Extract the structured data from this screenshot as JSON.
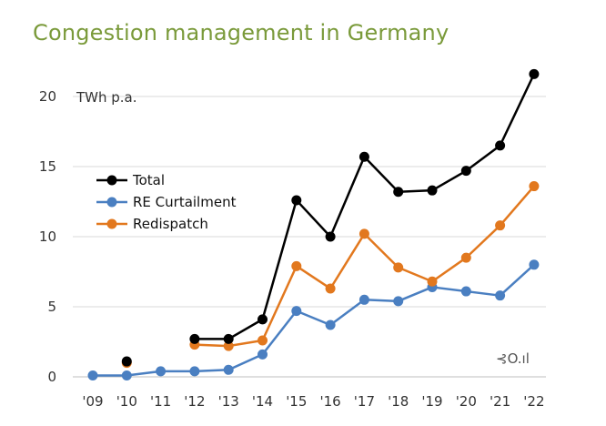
{
  "chart_data": {
    "type": "line",
    "title": "Congestion management in Germany",
    "unit_label": "TWh p.a.",
    "categories": [
      "'09",
      "'10",
      "'11",
      "'12",
      "'13",
      "'14",
      "'15",
      "'16",
      "'17",
      "'18",
      "'19",
      "'20",
      "'21",
      "'22"
    ],
    "ylim": [
      0,
      22
    ],
    "yticks": [
      0,
      5,
      10,
      15,
      20
    ],
    "grid": "horizontal",
    "legend_position": "upper-left",
    "series": [
      {
        "name": "Total",
        "color": "#000000",
        "values": [
          null,
          1.1,
          null,
          2.7,
          2.7,
          4.1,
          12.6,
          10.0,
          15.7,
          13.2,
          13.3,
          14.7,
          16.5,
          21.6
        ]
      },
      {
        "name": "RE Curtailment",
        "color": "#4a7fc1",
        "values": [
          0.1,
          0.1,
          0.4,
          0.4,
          0.5,
          1.6,
          4.7,
          3.7,
          5.5,
          5.4,
          6.4,
          6.1,
          5.8,
          8.0
        ]
      },
      {
        "name": "Redispatch",
        "color": "#e2781e",
        "values": [
          null,
          1.0,
          null,
          2.3,
          2.2,
          2.6,
          7.9,
          6.3,
          10.2,
          7.8,
          6.8,
          8.5,
          10.8,
          13.6
        ]
      }
    ]
  },
  "logo_text": "⊰O.ıl"
}
